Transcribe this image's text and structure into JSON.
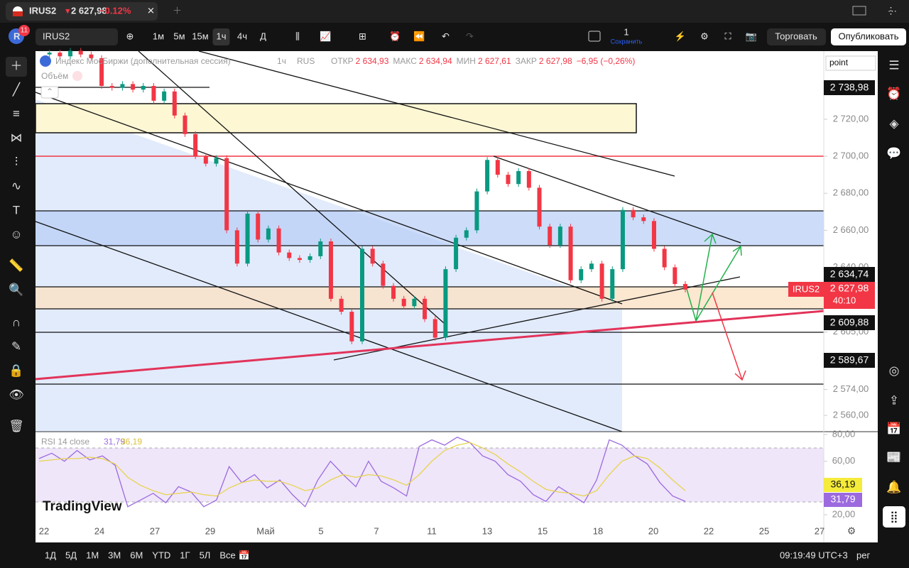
{
  "tab": {
    "symbol": "IRUS2",
    "price": "2 627,98",
    "change": "−0.12%"
  },
  "badge": "11",
  "toolbar": {
    "symbol": "IRUS2",
    "intervals": [
      "1м",
      "5м",
      "15м",
      "1ч",
      "4ч",
      "Д"
    ],
    "layout_count": "1",
    "save": "Сохранить",
    "trade": "Торговать",
    "publish": "Опубликовать"
  },
  "legend": {
    "name": "Индекс МосБиржи (дополнительная сессия)",
    "interval": "1ч",
    "exchange": "RUS",
    "ohlc": [
      {
        "label": "ОТКР",
        "value": "2 634,93"
      },
      {
        "label": "МАКС",
        "value": "2 634,94"
      },
      {
        "label": "МИН",
        "value": "2 627,61"
      },
      {
        "label": "ЗАКР",
        "value": "2 627,98"
      }
    ],
    "change": "−6,95 (−0,26%)",
    "volume": "Объём"
  },
  "indicator": {
    "name": "RSI 14 close",
    "rsi": "31,79",
    "ma": "36,19"
  },
  "scale_mode": "point",
  "price_badges": [
    "2 738,98",
    "2 634,74",
    "2 609,88",
    "2 589,67"
  ],
  "last_price": {
    "symbol": "IRUS2",
    "price": "2 627,98",
    "countdown": "40:10"
  },
  "watermark": "TradingView",
  "x_labels": [
    "22",
    "24",
    "27",
    "29",
    "Май",
    "5",
    "7",
    "11",
    "13",
    "15",
    "18",
    "20",
    "22",
    "25",
    "27"
  ],
  "ranges": [
    "1Д",
    "5Д",
    "1М",
    "3М",
    "6М",
    "YTD",
    "1Г",
    "5Л",
    "Все"
  ],
  "clock": "09:19:49 UTC+3",
  "session": "рег",
  "chart_data": [
    {
      "type": "candles",
      "up_color": "#089981",
      "down_color": "#f23645",
      "values": [
        2755,
        2756,
        2754,
        2757,
        2755,
        2753,
        2738,
        2737,
        2739,
        2736,
        2738,
        2730,
        2735,
        2722,
        2712,
        2700,
        2696,
        2699,
        2660,
        2642,
        2669,
        2655,
        2661,
        2648,
        2645,
        2644,
        2646,
        2654,
        2623,
        2616,
        2600,
        2650,
        2642,
        2630,
        2623,
        2619,
        2623,
        2612,
        2602,
        2639,
        2656,
        2660,
        2681,
        2698,
        2690,
        2685,
        2692,
        2683,
        2662,
        2652,
        2662,
        2633,
        2639,
        2642,
        2623,
        2639,
        2671,
        2667,
        2665,
        2650,
        2640,
        2631,
        2627.98
      ],
      "ylim": [
        2551.2,
        2756.8
      ],
      "yticks": [
        {
          "value": 2720,
          "label": "2 720,00"
        },
        {
          "value": 2700,
          "label": "2 700,00"
        },
        {
          "value": 2680,
          "label": "2 680,00"
        },
        {
          "value": 2660,
          "label": "2 660,00"
        },
        {
          "value": 2640,
          "label": "2 640,00"
        },
        {
          "value": 2605,
          "label": "2 605,00"
        },
        {
          "value": 2574,
          "label": "2 574,00"
        },
        {
          "value": 2560,
          "label": "2 560,00"
        }
      ]
    },
    {
      "type": "line",
      "series": [
        {
          "name": "RSI",
          "color": "#9c6ade",
          "values": [
            62,
            66,
            60,
            68,
            61,
            64,
            57,
            26,
            31,
            36,
            29,
            41,
            37,
            26,
            31,
            56,
            44,
            50,
            40,
            46,
            35,
            26,
            46,
            60,
            50,
            41,
            60,
            45,
            40,
            34,
            71,
            76,
            72,
            78,
            74,
            64,
            60,
            50,
            45,
            35,
            30,
            41,
            35,
            29,
            46,
            76,
            72,
            64,
            58,
            44,
            34,
            30
          ]
        },
        {
          "name": "MA",
          "color": "#e8d44d",
          "values": [
            60,
            61,
            62,
            62,
            63,
            62,
            58,
            48,
            42,
            38,
            35,
            36,
            37,
            35,
            34,
            40,
            44,
            46,
            45,
            45,
            42,
            38,
            40,
            46,
            50,
            48,
            50,
            49,
            46,
            42,
            50,
            60,
            68,
            72,
            74,
            70,
            65,
            58,
            52,
            45,
            39,
            37,
            36,
            34,
            38,
            50,
            60,
            64,
            62,
            55,
            46,
            38
          ]
        }
      ],
      "ylim": [
        13.1,
        82.1
      ],
      "yticks": [
        {
          "value": 80,
          "label": "80,00"
        },
        {
          "value": 60,
          "label": "60,00"
        },
        {
          "value": 20,
          "label": "20,00"
        }
      ]
    }
  ]
}
